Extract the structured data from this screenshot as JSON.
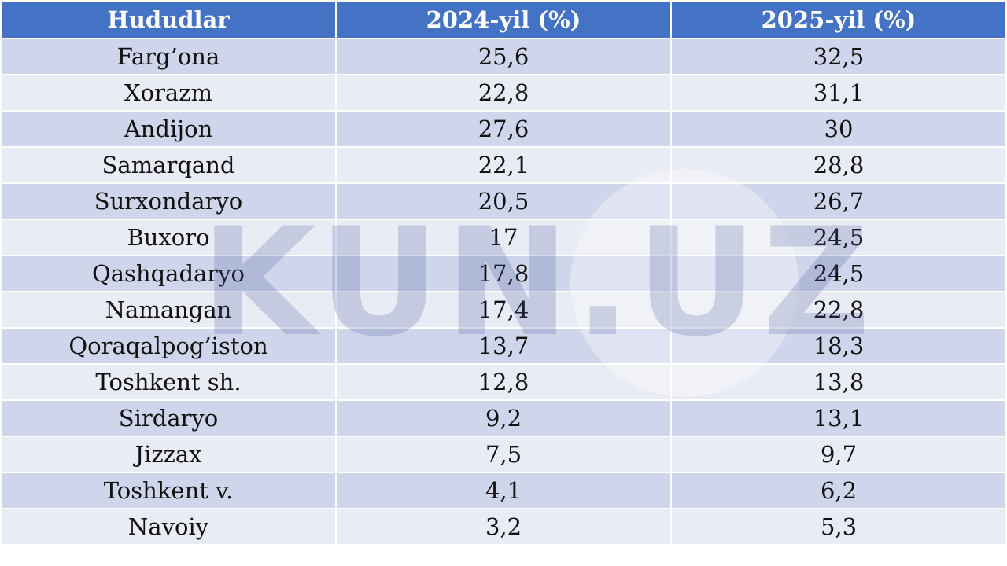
{
  "table": {
    "header": [
      "Hududlar",
      "2024-yil (%)",
      "2025-yil (%)"
    ],
    "rows": [
      [
        "Farg’ona",
        "25,6",
        "32,5"
      ],
      [
        "Xorazm",
        "22,8",
        "31,1"
      ],
      [
        "Andijon",
        "27,6",
        "30"
      ],
      [
        "Samarqand",
        "22,1",
        "28,8"
      ],
      [
        "Surxondaryo",
        "20,5",
        "26,7"
      ],
      [
        "Buxoro",
        "17",
        "24,5"
      ],
      [
        "Qashqadaryo",
        "17,8",
        "24,5"
      ],
      [
        "Namangan",
        "17,4",
        "22,8"
      ],
      [
        "Qoraqalpog’iston",
        "13,7",
        "18,3"
      ],
      [
        "Toshkent sh.",
        "12,8",
        "13,8"
      ],
      [
        "Sirdaryo",
        "9,2",
        "13,1"
      ],
      [
        "Jizzax",
        "7,5",
        "9,7"
      ],
      [
        "Toshkent v.",
        "4,1",
        "6,2"
      ],
      [
        "Navoiy",
        "3,2",
        "5,3"
      ]
    ]
  },
  "watermark": "KUN.UZ"
}
